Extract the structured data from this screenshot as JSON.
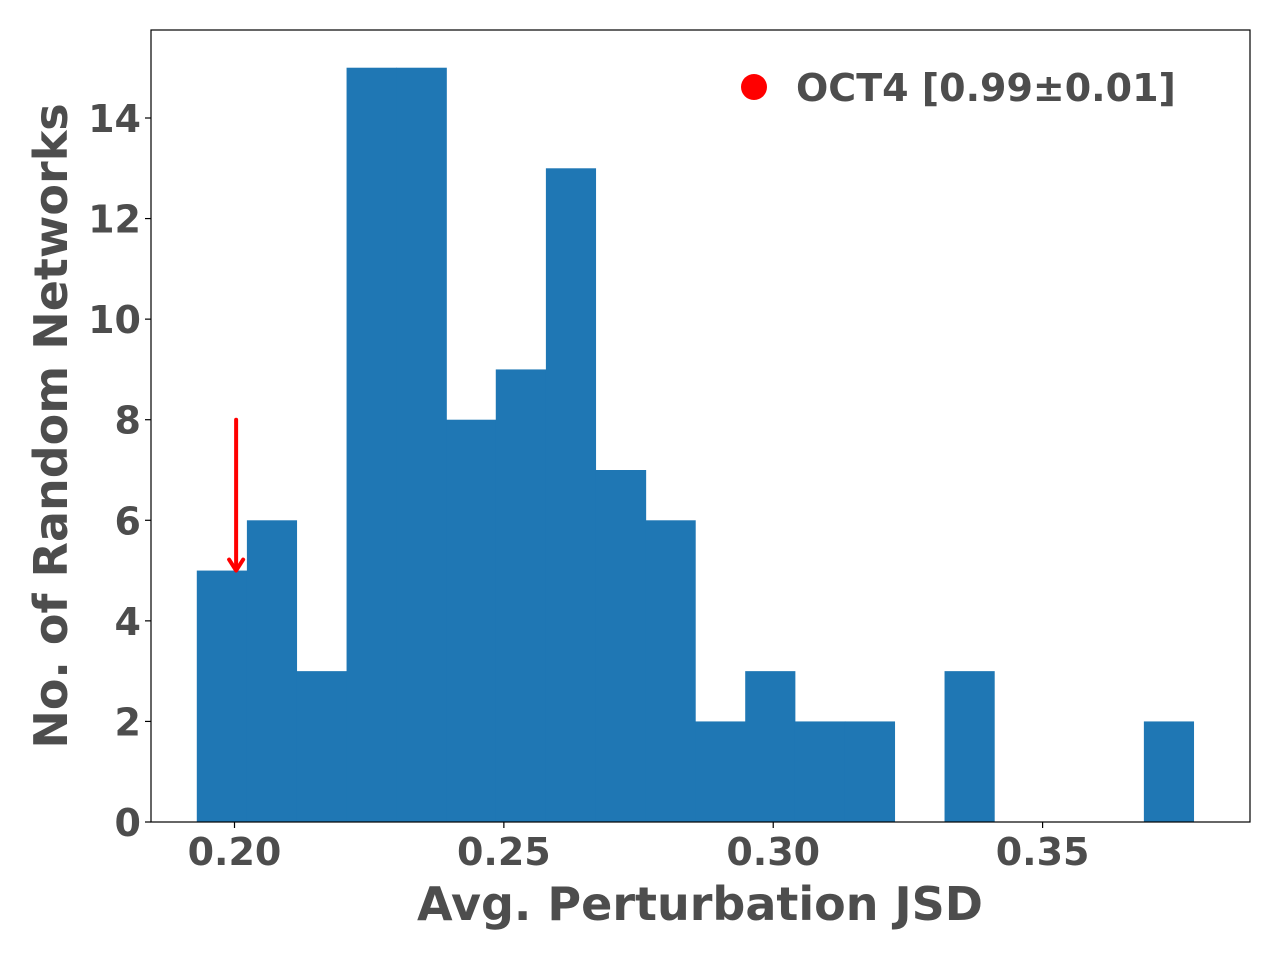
{
  "chart_data": {
    "type": "bar",
    "xlabel": "Avg. Perturbation JSD",
    "ylabel": "No. of Random Networks",
    "xlim": [
      0.1845,
      0.3885
    ],
    "ylim": [
      0,
      15.75
    ],
    "grid": false,
    "bar_color": "#1f77b4",
    "bin_edges": [
      0.193,
      0.2023,
      0.2115,
      0.2208,
      0.23,
      0.2393,
      0.2485,
      0.2578,
      0.267,
      0.2763,
      0.2855,
      0.2948,
      0.304,
      0.3133,
      0.3225,
      0.3318,
      0.341,
      0.3503,
      0.3595,
      0.3688,
      0.378
    ],
    "counts": [
      5,
      6,
      3,
      15,
      15,
      8,
      9,
      13,
      7,
      6,
      2,
      3,
      2,
      2,
      0,
      3,
      0,
      0,
      0,
      2
    ],
    "x_ticks": [
      0.2,
      0.25,
      0.3,
      0.35
    ],
    "x_tick_labels": [
      "0.20",
      "0.25",
      "0.30",
      "0.35"
    ],
    "y_ticks": [
      0,
      2,
      4,
      6,
      8,
      10,
      12,
      14
    ],
    "y_tick_labels": [
      "0",
      "2",
      "4",
      "6",
      "8",
      "10",
      "12",
      "14"
    ],
    "marker": {
      "label": "OCT4 [0.99±0.01]",
      "color": "#ff0000",
      "arrow_x": 0.2003,
      "arrow_from_y": 8,
      "arrow_to_y": 5
    },
    "legend_position": "top-right"
  }
}
